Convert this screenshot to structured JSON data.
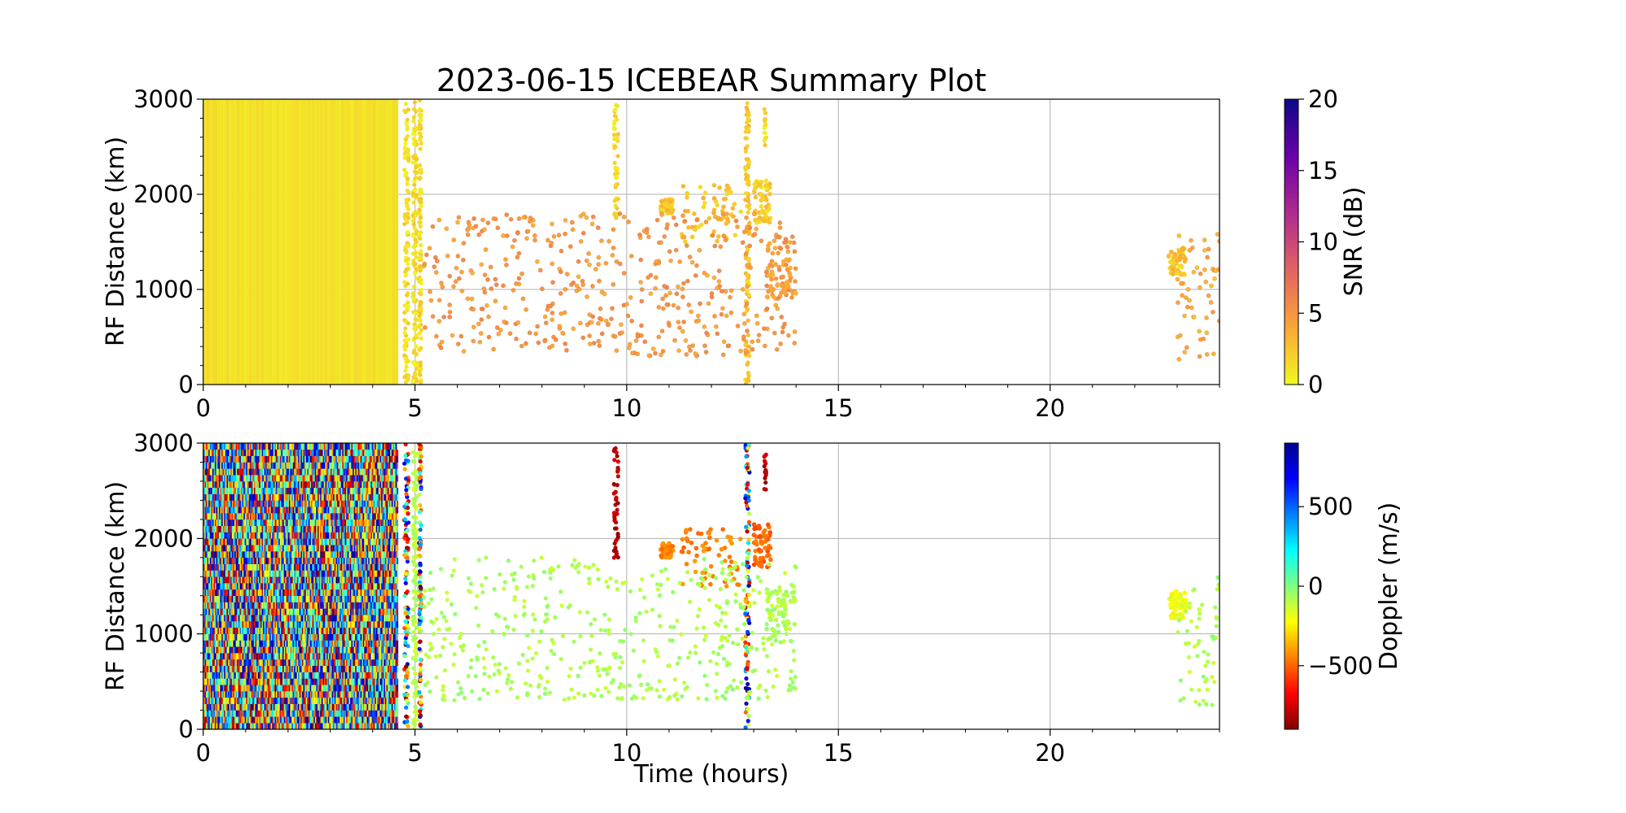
{
  "title": "2023-06-15 ICEBEAR Summary Plot",
  "chart_data": [
    {
      "type": "scatter",
      "panel": "top",
      "xlabel": "",
      "ylabel": "RF Distance (km)",
      "xlim": [
        0,
        24
      ],
      "ylim": [
        0,
        3000
      ],
      "xticks": [
        0,
        5,
        10,
        15,
        20
      ],
      "yticks": [
        0,
        1000,
        2000,
        3000
      ],
      "grid": true,
      "colorbar": {
        "label": "SNR (dB)",
        "range": [
          0,
          20
        ],
        "ticks": [
          0,
          5,
          10,
          15,
          20
        ],
        "colormap": "plasma_r",
        "colors": [
          "#f0f921",
          "#fca636",
          "#e16462",
          "#b12a90",
          "#6a00a8",
          "#0d0887"
        ]
      },
      "regions": [
        {
          "desc": "dense continuous coverage",
          "x": [
            0,
            4.6
          ],
          "y": [
            0,
            3000
          ],
          "snr": 0.5
        },
        {
          "desc": "vertical streak",
          "x": [
            4.75,
            4.85
          ],
          "y": [
            0,
            3000
          ],
          "snr": 0.8
        },
        {
          "desc": "vertical streak",
          "x": [
            4.95,
            5.05
          ],
          "y": [
            0,
            3000
          ],
          "snr": 0.8
        },
        {
          "desc": "vertical streak",
          "x": [
            5.1,
            5.15
          ],
          "y": [
            0,
            3000
          ],
          "snr": 1.0
        },
        {
          "desc": "vertical streak",
          "x": [
            9.7,
            9.8
          ],
          "y": [
            1750,
            2950
          ],
          "snr": 1.0
        },
        {
          "desc": "vertical streak",
          "x": [
            12.8,
            12.9
          ],
          "y": [
            0,
            3000
          ],
          "snr": 2.0
        },
        {
          "desc": "vertical streak",
          "x": [
            13.25,
            13.3
          ],
          "y": [
            2500,
            2900
          ],
          "snr": 1.0
        },
        {
          "desc": "echo cluster",
          "x": [
            10.8,
            11.1
          ],
          "y": [
            1800,
            1950
          ],
          "snr": 2.0
        },
        {
          "desc": "echo cluster",
          "x": [
            11.3,
            12.7
          ],
          "y": [
            1500,
            2100
          ],
          "snr": 2.0
        },
        {
          "desc": "echo cluster",
          "x": [
            13.0,
            13.4
          ],
          "y": [
            1700,
            2150
          ],
          "snr": 1.5
        },
        {
          "desc": "scattered points",
          "x": [
            5.2,
            14.0
          ],
          "y": [
            300,
            1800
          ],
          "snr": 4.0
        },
        {
          "desc": "echo cluster",
          "x": [
            13.3,
            14.0
          ],
          "y": [
            900,
            1500
          ],
          "snr": 4.0
        },
        {
          "desc": "echo cluster",
          "x": [
            22.8,
            23.2
          ],
          "y": [
            1150,
            1450
          ],
          "snr": 2.0
        },
        {
          "desc": "scattered points",
          "x": [
            23.0,
            24.0
          ],
          "y": [
            250,
            1600
          ],
          "snr": 3.0
        }
      ]
    },
    {
      "type": "scatter",
      "panel": "bottom",
      "xlabel": "Time (hours)",
      "ylabel": "RF Distance (km)",
      "xlim": [
        0,
        24
      ],
      "ylim": [
        0,
        3000
      ],
      "xticks": [
        0,
        5,
        10,
        15,
        20
      ],
      "yticks": [
        0,
        1000,
        2000,
        3000
      ],
      "grid": true,
      "colorbar": {
        "label": "Doppler (m/s)",
        "range": [
          -900,
          900
        ],
        "ticks": [
          -500,
          0,
          500
        ],
        "tick_labels": [
          "−500",
          "0",
          "500"
        ],
        "colormap": "jet_r",
        "colors": [
          "#800000",
          "#ff0000",
          "#ff8000",
          "#ffff00",
          "#80ff80",
          "#00ffff",
          "#0080ff",
          "#0000ff",
          "#00008f"
        ]
      },
      "regions": [
        {
          "desc": "dense mixed Doppler",
          "x": [
            0,
            4.6
          ],
          "y": [
            0,
            3000
          ],
          "doppler": "mixed"
        },
        {
          "desc": "vertical streak",
          "x": [
            4.75,
            4.85
          ],
          "y": [
            0,
            3000
          ],
          "doppler": "mixed"
        },
        {
          "desc": "vertical streak",
          "x": [
            4.95,
            5.05
          ],
          "y": [
            0,
            3000
          ],
          "doppler": -100
        },
        {
          "desc": "vertical streak",
          "x": [
            5.1,
            5.15
          ],
          "y": [
            0,
            3000
          ],
          "doppler": "mixed"
        },
        {
          "desc": "vertical streak",
          "x": [
            9.7,
            9.8
          ],
          "y": [
            1750,
            2950
          ],
          "doppler": -800
        },
        {
          "desc": "vertical streak",
          "x": [
            12.8,
            12.9
          ],
          "y": [
            0,
            3000
          ],
          "doppler": "mixed"
        },
        {
          "desc": "vertical streak",
          "x": [
            13.25,
            13.3
          ],
          "y": [
            2500,
            2900
          ],
          "doppler": -800
        },
        {
          "desc": "echo cluster",
          "x": [
            10.8,
            11.1
          ],
          "y": [
            1800,
            1950
          ],
          "doppler": -450
        },
        {
          "desc": "echo cluster",
          "x": [
            11.3,
            12.7
          ],
          "y": [
            1500,
            2100
          ],
          "doppler": -450
        },
        {
          "desc": "echo cluster",
          "x": [
            13.0,
            13.4
          ],
          "y": [
            1700,
            2150
          ],
          "doppler": -500
        },
        {
          "desc": "scattered points",
          "x": [
            5.2,
            14.0
          ],
          "y": [
            300,
            1800
          ],
          "doppler": -80
        },
        {
          "desc": "echo cluster",
          "x": [
            13.3,
            14.0
          ],
          "y": [
            900,
            1500
          ],
          "doppler": -80
        },
        {
          "desc": "echo cluster",
          "x": [
            22.8,
            23.2
          ],
          "y": [
            1150,
            1450
          ],
          "doppler": -200
        },
        {
          "desc": "scattered points",
          "x": [
            23.0,
            24.0
          ],
          "y": [
            250,
            1600
          ],
          "doppler": -80
        }
      ]
    }
  ]
}
